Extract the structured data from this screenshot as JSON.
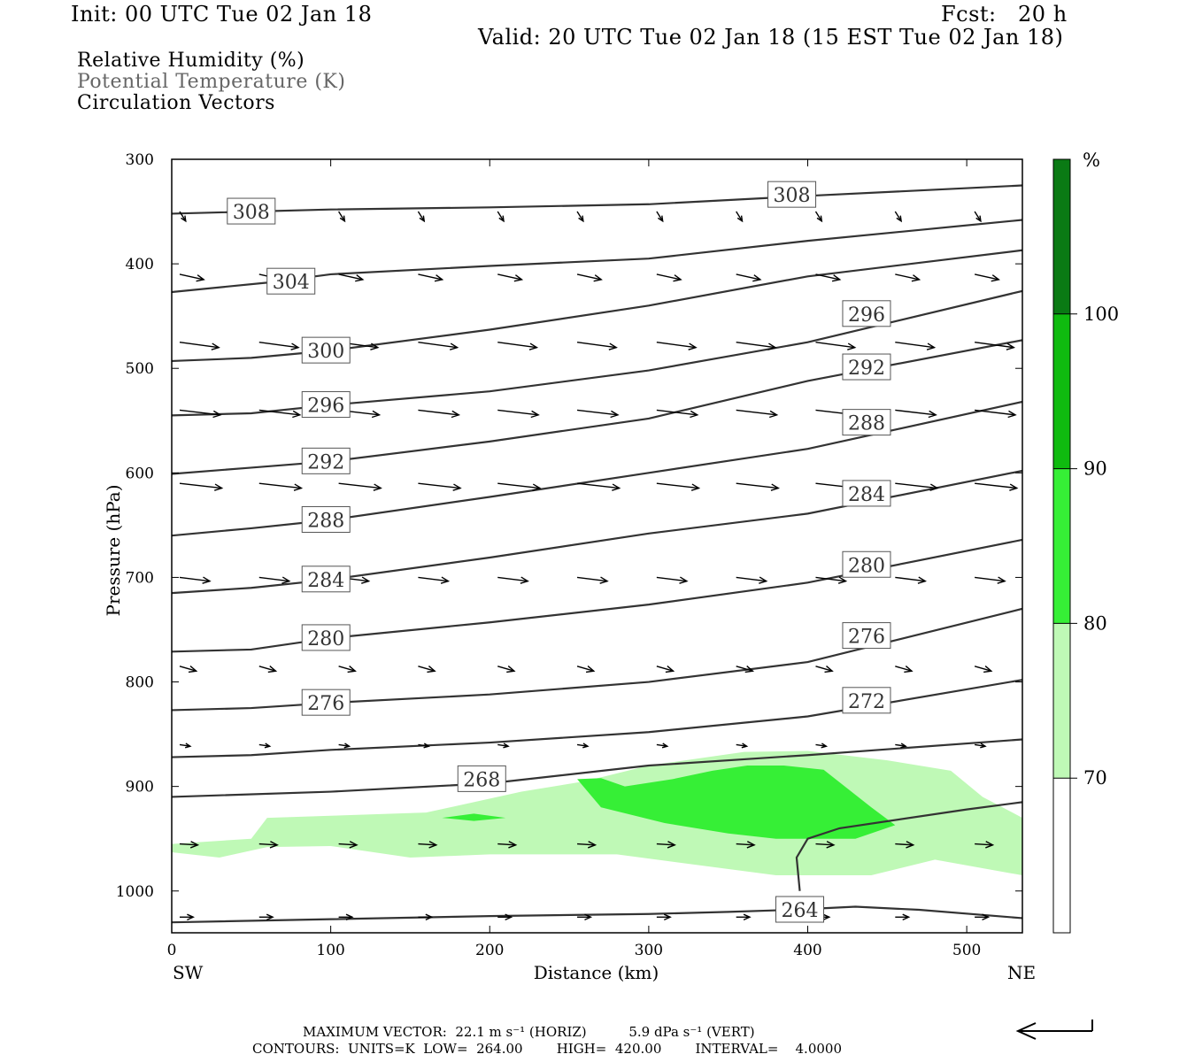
{
  "header": {
    "init": "Init: 00 UTC Tue 02 Jan 18",
    "fcst": "Fcst:   20 h",
    "valid": "Valid: 20 UTC Tue 02 Jan 18 (15 EST Tue 02 Jan 18)"
  },
  "legend": {
    "line1": "Relative Humidity (%)",
    "line2": "Potential Temperature (K)",
    "line3": "Circulation Vectors"
  },
  "colors": {
    "rh70": "#bff9b6",
    "rh80": "#36ef36",
    "rh90": "#0fbb0f",
    "rh100": "#0a7a14",
    "theta": "#333333",
    "legend2": "#666666"
  },
  "chart_data": {
    "type": "cross-section",
    "xlabel": "Distance (km)",
    "ylabel": "Pressure (hPa)",
    "x_ticks": [
      0,
      100,
      200,
      300,
      400,
      500
    ],
    "y_ticks": [
      300,
      400,
      500,
      600,
      700,
      800,
      900,
      1000
    ],
    "xlim": [
      0,
      535
    ],
    "ylim": [
      300,
      1040
    ],
    "x_start_label": "SW",
    "x_end_label": "NE",
    "colorbar": {
      "unit": "%",
      "levels": [
        70,
        80,
        90,
        100
      ],
      "colors": [
        "#ffffff",
        "#bff9b6",
        "#36ef36",
        "#0fbb0f",
        "#0a7a14"
      ]
    },
    "rh_regions": [
      {
        "level": 70,
        "points": [
          [
            0,
            955
          ],
          [
            50,
            950
          ],
          [
            60,
            930
          ],
          [
            100,
            928
          ],
          [
            160,
            925
          ],
          [
            220,
            905
          ],
          [
            260,
            895
          ],
          [
            300,
            880
          ],
          [
            360,
            867
          ],
          [
            400,
            866
          ],
          [
            450,
            875
          ],
          [
            490,
            885
          ],
          [
            510,
            910
          ],
          [
            535,
            930
          ],
          [
            535,
            985
          ],
          [
            480,
            970
          ],
          [
            440,
            985
          ],
          [
            380,
            985
          ],
          [
            330,
            975
          ],
          [
            280,
            965
          ],
          [
            200,
            965
          ],
          [
            150,
            968
          ],
          [
            100,
            957
          ],
          [
            60,
            958
          ],
          [
            30,
            968
          ],
          [
            0,
            963
          ]
        ]
      },
      {
        "level": 80,
        "points": [
          [
            255,
            893
          ],
          [
            270,
            892
          ],
          [
            285,
            900
          ],
          [
            315,
            893
          ],
          [
            340,
            885
          ],
          [
            362,
            880
          ],
          [
            385,
            880
          ],
          [
            410,
            884
          ],
          [
            440,
            920
          ],
          [
            455,
            937
          ],
          [
            430,
            950
          ],
          [
            380,
            950
          ],
          [
            350,
            945
          ],
          [
            310,
            935
          ],
          [
            270,
            920
          ]
        ]
      },
      {
        "level": 80,
        "points": [
          [
            170,
            930
          ],
          [
            190,
            926
          ],
          [
            210,
            930
          ],
          [
            190,
            933
          ]
        ]
      }
    ],
    "theta_contours": [
      {
        "value": 308,
        "points": [
          [
            0,
            352
          ],
          [
            100,
            348
          ],
          [
            200,
            346
          ],
          [
            300,
            343
          ],
          [
            400,
            335
          ],
          [
            535,
            325
          ]
        ],
        "labels": [
          [
            50,
            350
          ],
          [
            390,
            334
          ]
        ]
      },
      {
        "value": 304,
        "points": [
          [
            0,
            427
          ],
          [
            60,
            418
          ],
          [
            100,
            410
          ],
          [
            200,
            402
          ],
          [
            300,
            395
          ],
          [
            400,
            378
          ],
          [
            535,
            358
          ]
        ],
        "labels": [
          [
            75,
            417
          ]
        ]
      },
      {
        "value": 300,
        "points": [
          [
            0,
            493
          ],
          [
            50,
            490
          ],
          [
            100,
            483
          ],
          [
            200,
            463
          ],
          [
            300,
            440
          ],
          [
            400,
            412
          ],
          [
            535,
            387
          ]
        ],
        "labels": [
          [
            97,
            483
          ]
        ]
      },
      {
        "value": 296,
        "points": [
          [
            0,
            545
          ],
          [
            50,
            543
          ],
          [
            100,
            535
          ],
          [
            200,
            522
          ],
          [
            300,
            502
          ],
          [
            400,
            475
          ],
          [
            535,
            426
          ]
        ],
        "labels": [
          [
            97,
            535
          ],
          [
            437,
            448
          ]
        ]
      },
      {
        "value": 292,
        "points": [
          [
            0,
            601
          ],
          [
            50,
            595
          ],
          [
            100,
            589
          ],
          [
            200,
            570
          ],
          [
            300,
            548
          ],
          [
            400,
            512
          ],
          [
            535,
            473
          ]
        ],
        "labels": [
          [
            97,
            589
          ],
          [
            437,
            499
          ]
        ]
      },
      {
        "value": 288,
        "points": [
          [
            0,
            660
          ],
          [
            50,
            653
          ],
          [
            100,
            645
          ],
          [
            200,
            623
          ],
          [
            300,
            600
          ],
          [
            400,
            577
          ],
          [
            535,
            532
          ]
        ],
        "labels": [
          [
            97,
            645
          ],
          [
            437,
            552
          ]
        ]
      },
      {
        "value": 284,
        "points": [
          [
            0,
            715
          ],
          [
            50,
            710
          ],
          [
            100,
            702
          ],
          [
            200,
            681
          ],
          [
            300,
            658
          ],
          [
            400,
            639
          ],
          [
            535,
            598
          ]
        ],
        "labels": [
          [
            97,
            702
          ],
          [
            437,
            620
          ]
        ]
      },
      {
        "value": 280,
        "points": [
          [
            0,
            771
          ],
          [
            50,
            769
          ],
          [
            100,
            758
          ],
          [
            200,
            743
          ],
          [
            300,
            726
          ],
          [
            400,
            705
          ],
          [
            535,
            664
          ]
        ],
        "labels": [
          [
            97,
            758
          ],
          [
            437,
            688
          ]
        ]
      },
      {
        "value": 276,
        "points": [
          [
            0,
            827
          ],
          [
            50,
            825
          ],
          [
            100,
            820
          ],
          [
            200,
            812
          ],
          [
            300,
            800
          ],
          [
            400,
            781
          ],
          [
            535,
            730
          ]
        ],
        "labels": [
          [
            97,
            820
          ],
          [
            437,
            756
          ]
        ]
      },
      {
        "value": 272,
        "points": [
          [
            0,
            872
          ],
          [
            50,
            870
          ],
          [
            100,
            865
          ],
          [
            200,
            858
          ],
          [
            300,
            848
          ],
          [
            400,
            833
          ],
          [
            535,
            798
          ]
        ],
        "labels": [
          [
            437,
            818
          ]
        ]
      },
      {
        "value": 268,
        "points": [
          [
            0,
            910
          ],
          [
            100,
            905
          ],
          [
            200,
            897
          ],
          [
            300,
            880
          ],
          [
            400,
            870
          ],
          [
            535,
            855
          ]
        ],
        "labels": [
          [
            195,
            893
          ]
        ]
      },
      {
        "value": 264,
        "points": [
          [
            0,
            1030
          ],
          [
            100,
            1027
          ],
          [
            200,
            1024
          ],
          [
            300,
            1022
          ],
          [
            350,
            1020
          ],
          [
            390,
            1018
          ],
          [
            430,
            1015
          ],
          [
            470,
            1018
          ],
          [
            535,
            1026
          ]
        ],
        "labels": [
          [
            395,
            1018
          ]
        ]
      },
      {
        "value": 264,
        "points": [
          [
            395,
            1000
          ],
          [
            393,
            968
          ],
          [
            400,
            950
          ],
          [
            420,
            940
          ],
          [
            500,
            922
          ],
          [
            535,
            915
          ]
        ],
        "labels": []
      }
    ],
    "vectors_rows": [
      {
        "p": 350,
        "u": 0.4,
        "w": -0.9
      },
      {
        "p": 410,
        "u": 1.6,
        "w": -0.5
      },
      {
        "p": 475,
        "u": 2.6,
        "w": -0.5
      },
      {
        "p": 540,
        "u": 2.7,
        "w": -0.45
      },
      {
        "p": 610,
        "u": 2.8,
        "w": -0.45
      },
      {
        "p": 700,
        "u": 2.0,
        "w": -0.35
      },
      {
        "p": 785,
        "u": 1.1,
        "w": -0.45
      },
      {
        "p": 860,
        "u": 0.7,
        "w": -0.15
      },
      {
        "p": 955,
        "u": 1.2,
        "w": -0.1
      },
      {
        "p": 1025,
        "u": 0.9,
        "w": 0.0
      }
    ],
    "vector_x": [
      5,
      55,
      105,
      155,
      205,
      255,
      305,
      355,
      405,
      455,
      505
    ]
  },
  "footer": {
    "line1": "MAXIMUM VECTOR:  22.1 m s⁻¹ (HORIZ)          5.9 dPa s⁻¹ (VERT)",
    "line2": "CONTOURS:  UNITS=K  LOW=  264.00        HIGH=  420.00        INTERVAL=    4.0000"
  }
}
